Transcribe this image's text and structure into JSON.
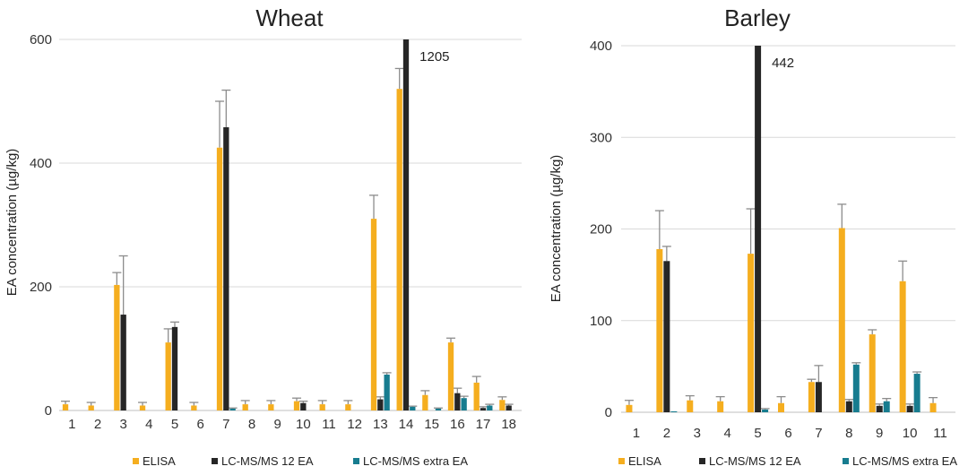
{
  "chart_data": [
    {
      "type": "bar",
      "title": "Wheat",
      "xlabel": "",
      "ylabel": "EA concentration (µg/kg)",
      "ylim": [
        0,
        600
      ],
      "yticks": [
        0,
        200,
        400,
        600
      ],
      "grid": true,
      "categories": [
        "1",
        "2",
        "3",
        "4",
        "5",
        "6",
        "7",
        "8",
        "9",
        "10",
        "11",
        "12",
        "13",
        "14",
        "15",
        "16",
        "17",
        "18"
      ],
      "series": [
        {
          "name": "ELISA",
          "color": "#F5AE1F",
          "values": [
            10,
            8,
            203,
            8,
            110,
            8,
            425,
            10,
            10,
            15,
            10,
            10,
            310,
            520,
            25,
            110,
            45,
            17
          ],
          "errors": [
            5,
            5,
            20,
            5,
            22,
            5,
            75,
            6,
            6,
            5,
            6,
            6,
            38,
            33,
            7,
            7,
            10,
            5
          ]
        },
        {
          "name": "LC-MS/MS 12 EA",
          "color": "#262626",
          "values": [
            0,
            0,
            155,
            0,
            135,
            0,
            458,
            0,
            0,
            12,
            0,
            0,
            18,
            600,
            0,
            28,
            4,
            8
          ],
          "errors": [
            0,
            0,
            95,
            0,
            8,
            0,
            60,
            0,
            0,
            3,
            0,
            0,
            4,
            0,
            0,
            8,
            2,
            2
          ]
        },
        {
          "name": "LC-MS/MS extra EA",
          "color": "#177C8F",
          "values": [
            0,
            0,
            0,
            0,
            0,
            0,
            3,
            0,
            0,
            0,
            0,
            0,
            58,
            6,
            3,
            20,
            8,
            0
          ],
          "errors": [
            0,
            0,
            0,
            0,
            0,
            0,
            1,
            0,
            0,
            0,
            0,
            0,
            3,
            1,
            1,
            3,
            2,
            0
          ]
        }
      ],
      "annotations": [
        {
          "text": "1205",
          "category": "14",
          "series": "LC-MS/MS 12 EA"
        }
      ],
      "legend": "bottom"
    },
    {
      "type": "bar",
      "title": "Barley",
      "xlabel": "",
      "ylabel": "EA concentration (µg/kg)",
      "ylim": [
        0,
        400
      ],
      "yticks": [
        0,
        100,
        200,
        300,
        400
      ],
      "grid": true,
      "categories": [
        "1",
        "2",
        "3",
        "4",
        "5",
        "6",
        "7",
        "8",
        "9",
        "10",
        "11"
      ],
      "series": [
        {
          "name": "ELISA",
          "color": "#F5AE1F",
          "values": [
            8,
            178,
            13,
            12,
            173,
            10,
            33,
            201,
            85,
            143,
            10
          ],
          "errors": [
            5,
            42,
            5,
            5,
            49,
            7,
            3,
            26,
            5,
            22,
            6
          ]
        },
        {
          "name": "LC-MS/MS 12 EA",
          "color": "#262626",
          "values": [
            0,
            165,
            0,
            0,
            400,
            0,
            33,
            12,
            7,
            7,
            0
          ],
          "errors": [
            0,
            16,
            0,
            0,
            0,
            0,
            18,
            2,
            2,
            2,
            0
          ]
        },
        {
          "name": "LC-MS/MS extra EA",
          "color": "#177C8F",
          "values": [
            0,
            1,
            0,
            0,
            3,
            0,
            0,
            52,
            12,
            42,
            0
          ],
          "errors": [
            0,
            0,
            0,
            0,
            1,
            0,
            0,
            2,
            3,
            2,
            0
          ]
        }
      ],
      "annotations": [
        {
          "text": "442",
          "category": "5",
          "series": "LC-MS/MS 12 EA"
        }
      ],
      "legend": "bottom"
    }
  ]
}
